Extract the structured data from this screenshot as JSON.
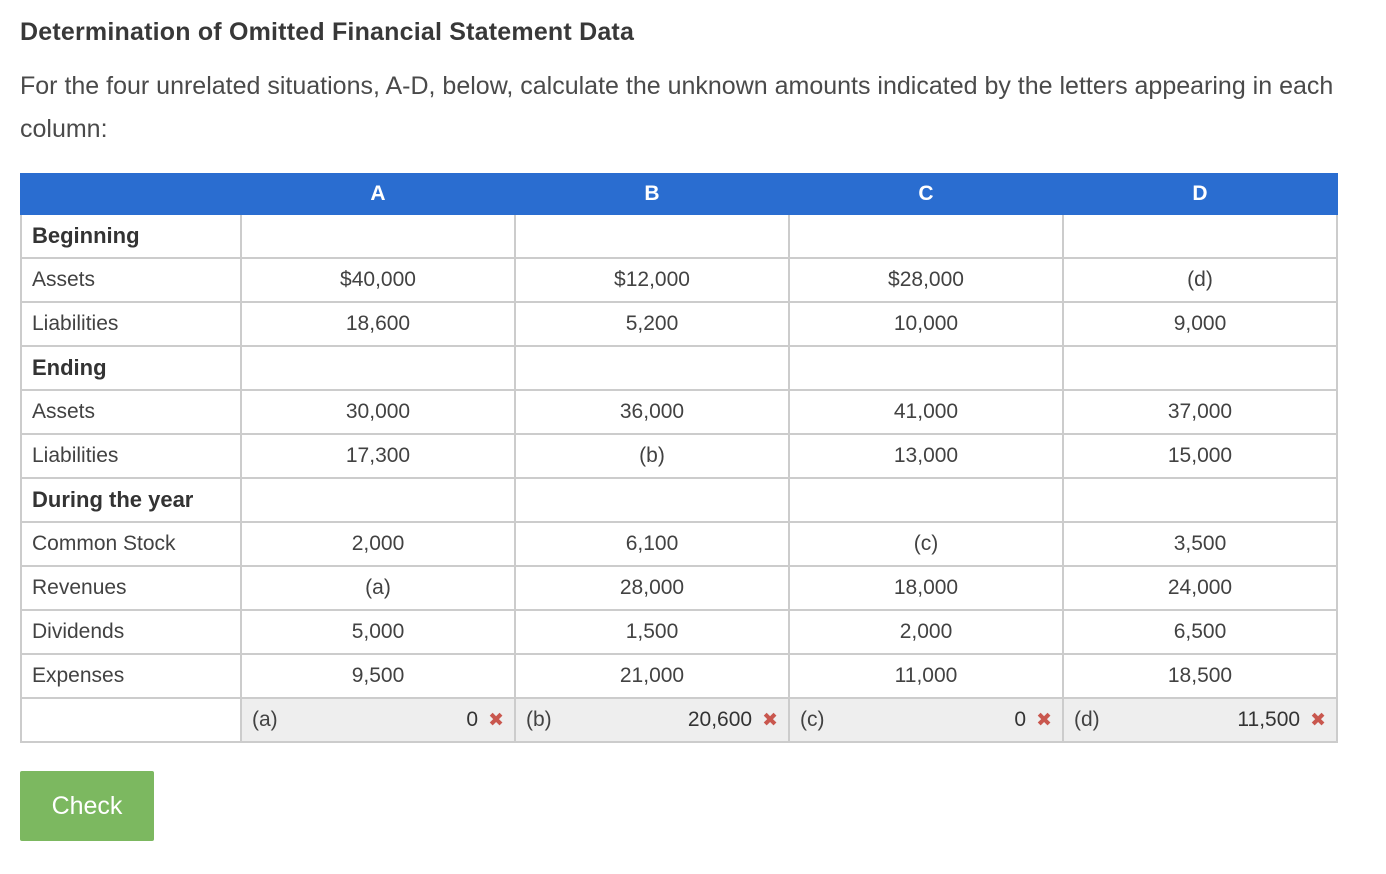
{
  "page": {
    "title": "Determination of Omitted Financial Statement Data",
    "instructions": "For the four unrelated situations, A-D, below, calculate the unknown amounts indicated by the letters appearing in each column:"
  },
  "table": {
    "columns": [
      "A",
      "B",
      "C",
      "D"
    ],
    "rows": [
      {
        "type": "section",
        "label": "Beginning",
        "values": [
          "",
          "",
          "",
          ""
        ]
      },
      {
        "type": "data",
        "label": "Assets",
        "values": [
          "$40,000",
          "$12,000",
          "$28,000",
          "(d)"
        ]
      },
      {
        "type": "data",
        "label": "Liabilities",
        "values": [
          "18,600",
          "5,200",
          "10,000",
          "9,000"
        ]
      },
      {
        "type": "section",
        "label": "Ending",
        "values": [
          "",
          "",
          "",
          ""
        ]
      },
      {
        "type": "data",
        "label": "Assets",
        "values": [
          "30,000",
          "36,000",
          "41,000",
          "37,000"
        ]
      },
      {
        "type": "data",
        "label": "Liabilities",
        "values": [
          "17,300",
          "(b)",
          "13,000",
          "15,000"
        ]
      },
      {
        "type": "section",
        "label": "During the year",
        "values": [
          "",
          "",
          "",
          ""
        ]
      },
      {
        "type": "data",
        "label": "Common Stock",
        "values": [
          "2,000",
          "6,100",
          "(c)",
          "3,500"
        ]
      },
      {
        "type": "data",
        "label": "Revenues",
        "values": [
          "(a)",
          "28,000",
          "18,000",
          "24,000"
        ]
      },
      {
        "type": "data",
        "label": "Dividends",
        "values": [
          "5,000",
          "1,500",
          "2,000",
          "6,500"
        ]
      },
      {
        "type": "data",
        "label": "Expenses",
        "values": [
          "9,500",
          "21,000",
          "11,000",
          "18,500"
        ]
      }
    ],
    "answers": [
      {
        "label": "(a)",
        "value": "0",
        "status": "incorrect"
      },
      {
        "label": "(b)",
        "value": "20,600",
        "status": "incorrect"
      },
      {
        "label": "(c)",
        "value": "0",
        "status": "incorrect"
      },
      {
        "label": "(d)",
        "value": "11,500",
        "status": "incorrect"
      }
    ],
    "status_icon": "incorrect-x-icon",
    "status_glyph": "✖"
  },
  "check_button": {
    "label": "Check"
  },
  "colors": {
    "header_blue": "#2a6dd0",
    "error_red": "#c9574e",
    "button_green": "#7cb860",
    "answer_bg": "#eeeeee",
    "border_gray": "#cccccc",
    "text_dark": "#3d3d3d"
  }
}
